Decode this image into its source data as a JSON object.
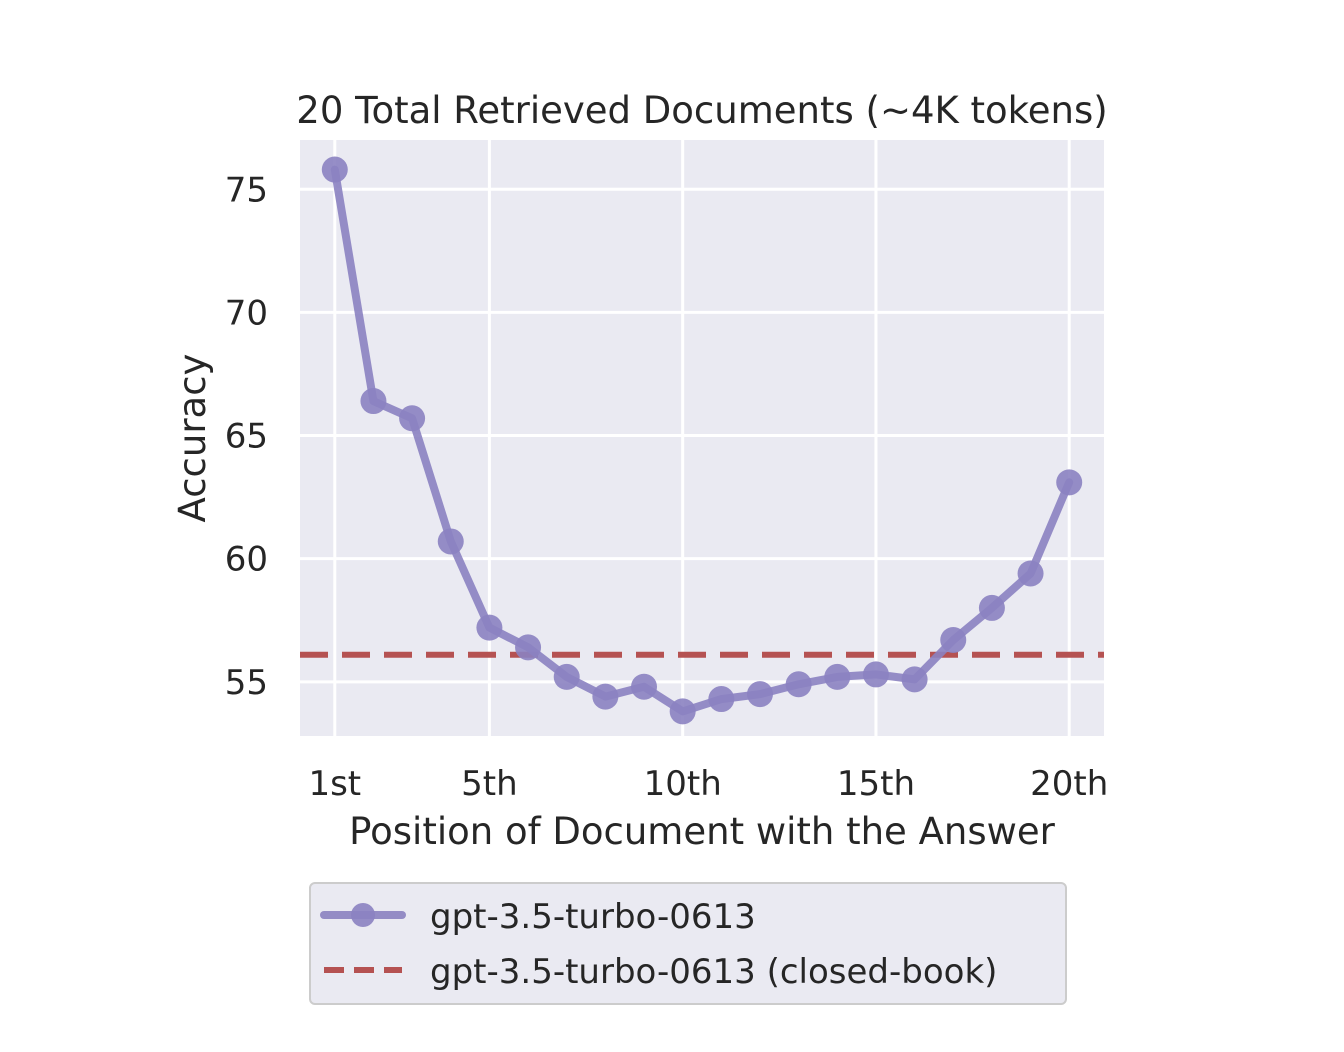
{
  "chart_data": {
    "type": "line",
    "title": "20 Total Retrieved Documents (~4K tokens)",
    "xlabel": "Position of Document with the Answer",
    "ylabel": "Accuracy",
    "xlim": [
      0.1,
      20.9
    ],
    "ylim": [
      52.8,
      77.0
    ],
    "x_ticks": [
      {
        "value": 1,
        "label": "1st"
      },
      {
        "value": 5,
        "label": "5th"
      },
      {
        "value": 10,
        "label": "10th"
      },
      {
        "value": 15,
        "label": "15th"
      },
      {
        "value": 20,
        "label": "20th"
      }
    ],
    "y_ticks": [
      55,
      60,
      65,
      70,
      75
    ],
    "grid": true,
    "legend": "below",
    "series": [
      {
        "name": "gpt-3.5-turbo-0613",
        "style": "line-marker",
        "color": "#8b82c1",
        "x": [
          1,
          2,
          3,
          4,
          5,
          6,
          7,
          8,
          9,
          10,
          11,
          12,
          13,
          14,
          15,
          16,
          17,
          18,
          19,
          20
        ],
        "values": [
          75.8,
          66.4,
          65.7,
          60.7,
          57.2,
          56.4,
          55.2,
          54.4,
          54.8,
          53.8,
          54.3,
          54.5,
          54.9,
          55.2,
          55.3,
          55.1,
          56.7,
          58.0,
          59.4,
          63.1
        ]
      },
      {
        "name": "gpt-3.5-turbo-0613 (closed-book)",
        "style": "dashed",
        "color": "#b55252",
        "value": 56.1
      }
    ]
  }
}
